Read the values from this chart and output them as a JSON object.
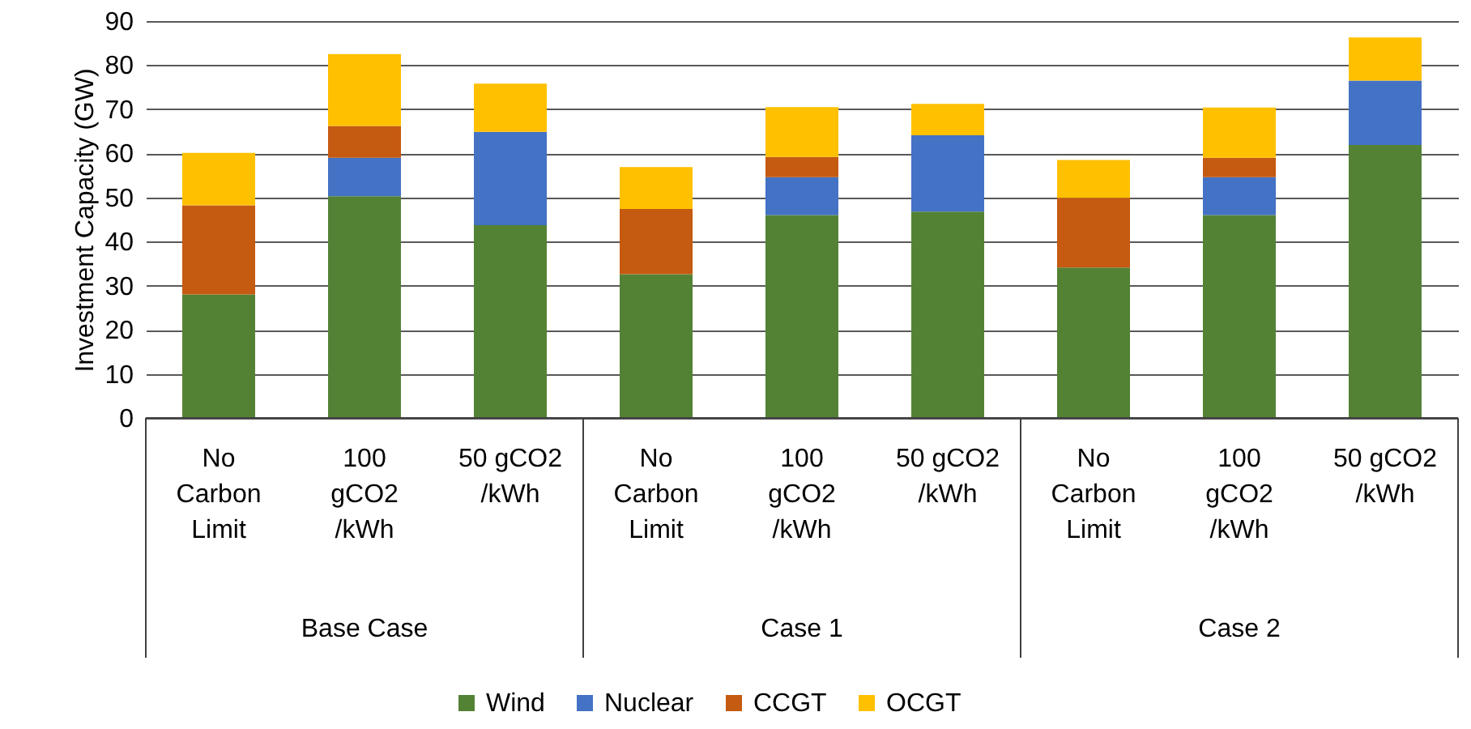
{
  "chart_data": {
    "type": "bar",
    "stacked": true,
    "ylabel": "Investment Capacity (GW)",
    "categories": [
      "No\nCarbon\nLimit",
      "100\ngCO2\n/kWh",
      "50 gCO2\n/kWh",
      "No\nCarbon\nLimit",
      "100\ngCO2\n/kWh",
      "50 gCO2\n/kWh",
      "No\nCarbon\nLimit",
      "100\ngCO2\n/kWh",
      "50 gCO2\n/kWh"
    ],
    "annotations": [
      "Base Case",
      "Case 1",
      "Case 2"
    ],
    "series": [
      {
        "name": "Wind",
        "color": "#548235",
        "values": [
          28.0,
          50.3,
          43.7,
          32.6,
          46.0,
          46.8,
          34.1,
          46.0,
          61.9
        ]
      },
      {
        "name": "Nuclear",
        "color": "#4472c4",
        "values": [
          null,
          8.7,
          21.2,
          null,
          8.6,
          17.3,
          null,
          8.6,
          14.6
        ]
      },
      {
        "name": "CCGT",
        "color": "#c55a11",
        "values": [
          20.2,
          7.2,
          null,
          14.8,
          4.6,
          null,
          15.8,
          4.4,
          null
        ]
      },
      {
        "name": "OCGT",
        "color": "#ffc000",
        "values": [
          11.9,
          16.3,
          10.9,
          9.5,
          11.3,
          7.1,
          8.6,
          11.4,
          9.8
        ]
      }
    ],
    "ylim": [
      0,
      90
    ],
    "yticks": [
      0,
      10,
      20,
      30,
      40,
      50,
      60,
      70,
      80,
      90
    ],
    "grid": "y",
    "legend": "bottom"
  }
}
